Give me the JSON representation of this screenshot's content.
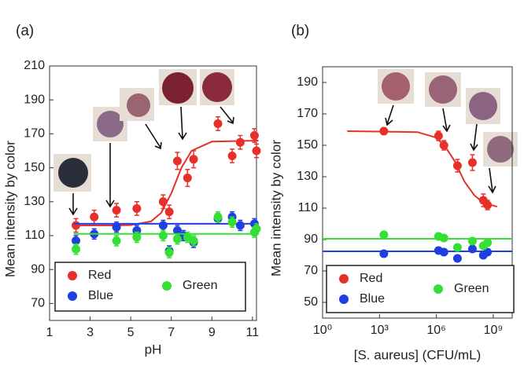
{
  "chart_data": [
    {
      "type": "scatter",
      "title": "(a)",
      "xlabel": "pH",
      "ylabel": "Mean intensity by color",
      "xlim": [
        1,
        11.2
      ],
      "xticks": [
        1,
        3,
        5,
        7,
        9,
        11
      ],
      "ylim": [
        60,
        210
      ],
      "yticks": [
        70,
        90,
        110,
        130,
        150,
        170,
        190,
        210
      ],
      "legend": "bottom",
      "series": [
        {
          "name": "Red",
          "color": "#e8302a",
          "x": [
            2.3,
            3.2,
            4.3,
            5.3,
            6.6,
            6.9,
            7.3,
            7.8,
            8.1,
            9.3,
            10.0,
            10.4,
            11.1,
            11.2
          ],
          "values": [
            116,
            121,
            125,
            126,
            130,
            124,
            154,
            144,
            155,
            176,
            157,
            165,
            169,
            160
          ],
          "errors": [
            4,
            4,
            4,
            4,
            4,
            4,
            5,
            5,
            5,
            4,
            4,
            4,
            4,
            4
          ],
          "fit": {
            "x": [
              2.2,
              4,
              5,
              6,
              6.5,
              7,
              7.2,
              7.5,
              8,
              9,
              11.3
            ],
            "values": [
              116,
              116,
              116.2,
              118.4,
              123.4,
              134.9,
              141,
              150,
              160,
              165.4,
              166
            ]
          }
        },
        {
          "name": "Blue",
          "color": "#1f3fe0",
          "x": [
            2.3,
            3.2,
            4.3,
            5.3,
            6.6,
            6.9,
            7.3,
            7.6,
            8.1,
            9.3,
            10.0,
            10.4,
            11.1
          ],
          "values": [
            107,
            111,
            115,
            113,
            116,
            101,
            113,
            110,
            106,
            120,
            121,
            116,
            117
          ],
          "errors": [
            3,
            3,
            3,
            3,
            3,
            3,
            3,
            3,
            3,
            3,
            3,
            3,
            3
          ],
          "fit": {
            "x": [
              2.2,
              11.3
            ],
            "values": [
              117,
              117
            ]
          }
        },
        {
          "name": "Green",
          "color": "#33e033",
          "x": [
            2.3,
            4.3,
            5.3,
            6.6,
            6.9,
            7.3,
            7.8,
            8.1,
            9.3,
            10.0,
            11.1,
            11.2
          ],
          "values": [
            102,
            107,
            109,
            110,
            100,
            108,
            109,
            107,
            121,
            118,
            112,
            114
          ],
          "errors": [
            3,
            3,
            3,
            3,
            3,
            3,
            3,
            3,
            3,
            3,
            3,
            3
          ],
          "fit": {
            "x": [
              2.2,
              11.3
            ],
            "values": [
              111,
              111
            ]
          }
        }
      ]
    },
    {
      "type": "scatter",
      "title": "(b)",
      "xlabel": "[S. aureus] (CFU/mL)",
      "ylabel": "Mean intensity by color",
      "xscale": "log",
      "xlim": [
        1,
        10000000000
      ],
      "xticks": [
        {
          "value": 1,
          "label": "10⁰"
        },
        {
          "value": 1000,
          "label": "10³"
        },
        {
          "value": 1000000,
          "label": "10⁶"
        },
        {
          "value": 1000000000,
          "label": "10⁹"
        }
      ],
      "ylim": [
        40,
        200
      ],
      "yticks": [
        50,
        70,
        90,
        110,
        130,
        150,
        170,
        190
      ],
      "legend": "bottom",
      "series": [
        {
          "name": "Red",
          "color": "#e8302a",
          "x": [
            1700,
            1300000,
            2500000,
            13000000,
            80000000,
            300000000,
            500000000
          ],
          "values": [
            159,
            156,
            150,
            137,
            139,
            115,
            112
          ],
          "errors": [
            2,
            3,
            3,
            4,
            5,
            4,
            3
          ],
          "fit": {
            "x": [
              20,
              100000,
              1000000,
              3000000,
              10000000,
              30000000,
              100000000,
              300000000,
              1600000000
            ],
            "values": [
              159,
              158.4,
              154.9,
              149,
              139.3,
              127,
              118.2,
              113.5,
              110.9
            ]
          }
        },
        {
          "name": "Blue",
          "color": "#1f3fe0",
          "x": [
            1700,
            1300000,
            2500000,
            13000000,
            80000000,
            300000000,
            500000000
          ],
          "values": [
            81,
            83,
            82,
            78,
            84,
            80,
            82
          ],
          "errors": [
            2,
            2,
            2,
            2,
            2,
            2,
            2
          ],
          "fit": {
            "x": [
              1,
              10000000000
            ],
            "values": [
              82.5,
              82.5
            ]
          }
        },
        {
          "name": "Green",
          "color": "#33e033",
          "x": [
            1700,
            1300000,
            2500000,
            13000000,
            80000000,
            300000000,
            500000000
          ],
          "values": [
            93,
            92,
            91,
            85,
            89,
            86,
            88
          ],
          "errors": [
            2,
            2,
            2,
            2,
            2,
            2,
            2
          ],
          "fit": {
            "x": [
              1,
              10000000000
            ],
            "values": [
              90.5,
              90.5
            ]
          }
        }
      ]
    }
  ]
}
